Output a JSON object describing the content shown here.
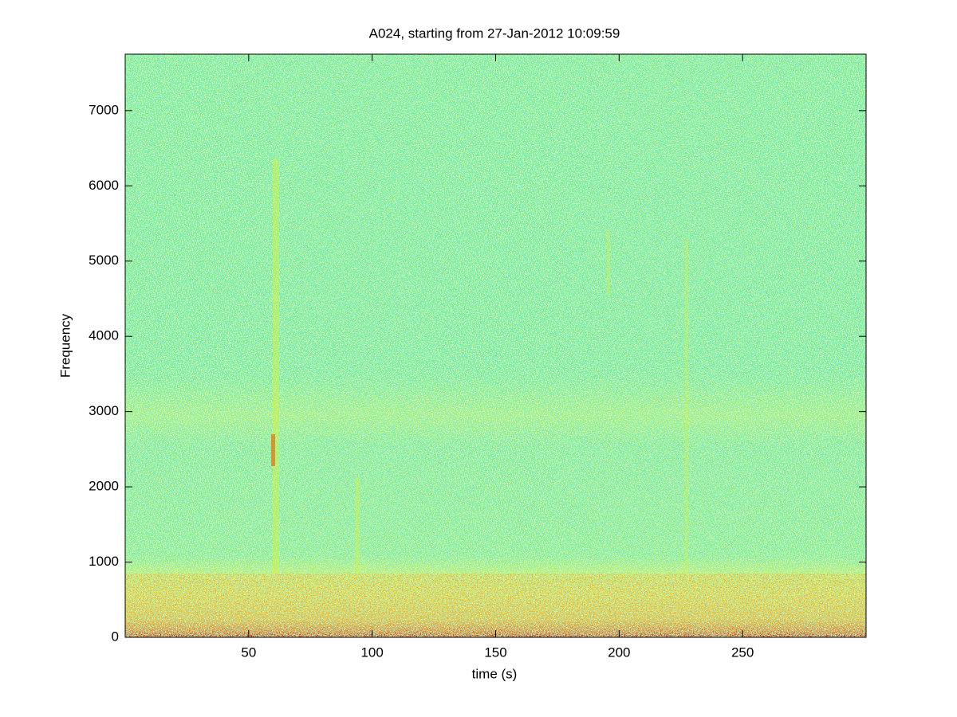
{
  "chart_data": {
    "type": "spectrogram",
    "title": "A024, starting from 27-Jan-2012 10:09:59",
    "x_label": "time (s)",
    "y_label": "Frequency",
    "xlim": [
      0,
      300
    ],
    "xticks": [
      50,
      100,
      150,
      200,
      250
    ],
    "ylim": [
      0,
      7750
    ],
    "yticks": [
      0,
      1000,
      2000,
      3000,
      4000,
      5000,
      6000,
      7000
    ]
  }
}
